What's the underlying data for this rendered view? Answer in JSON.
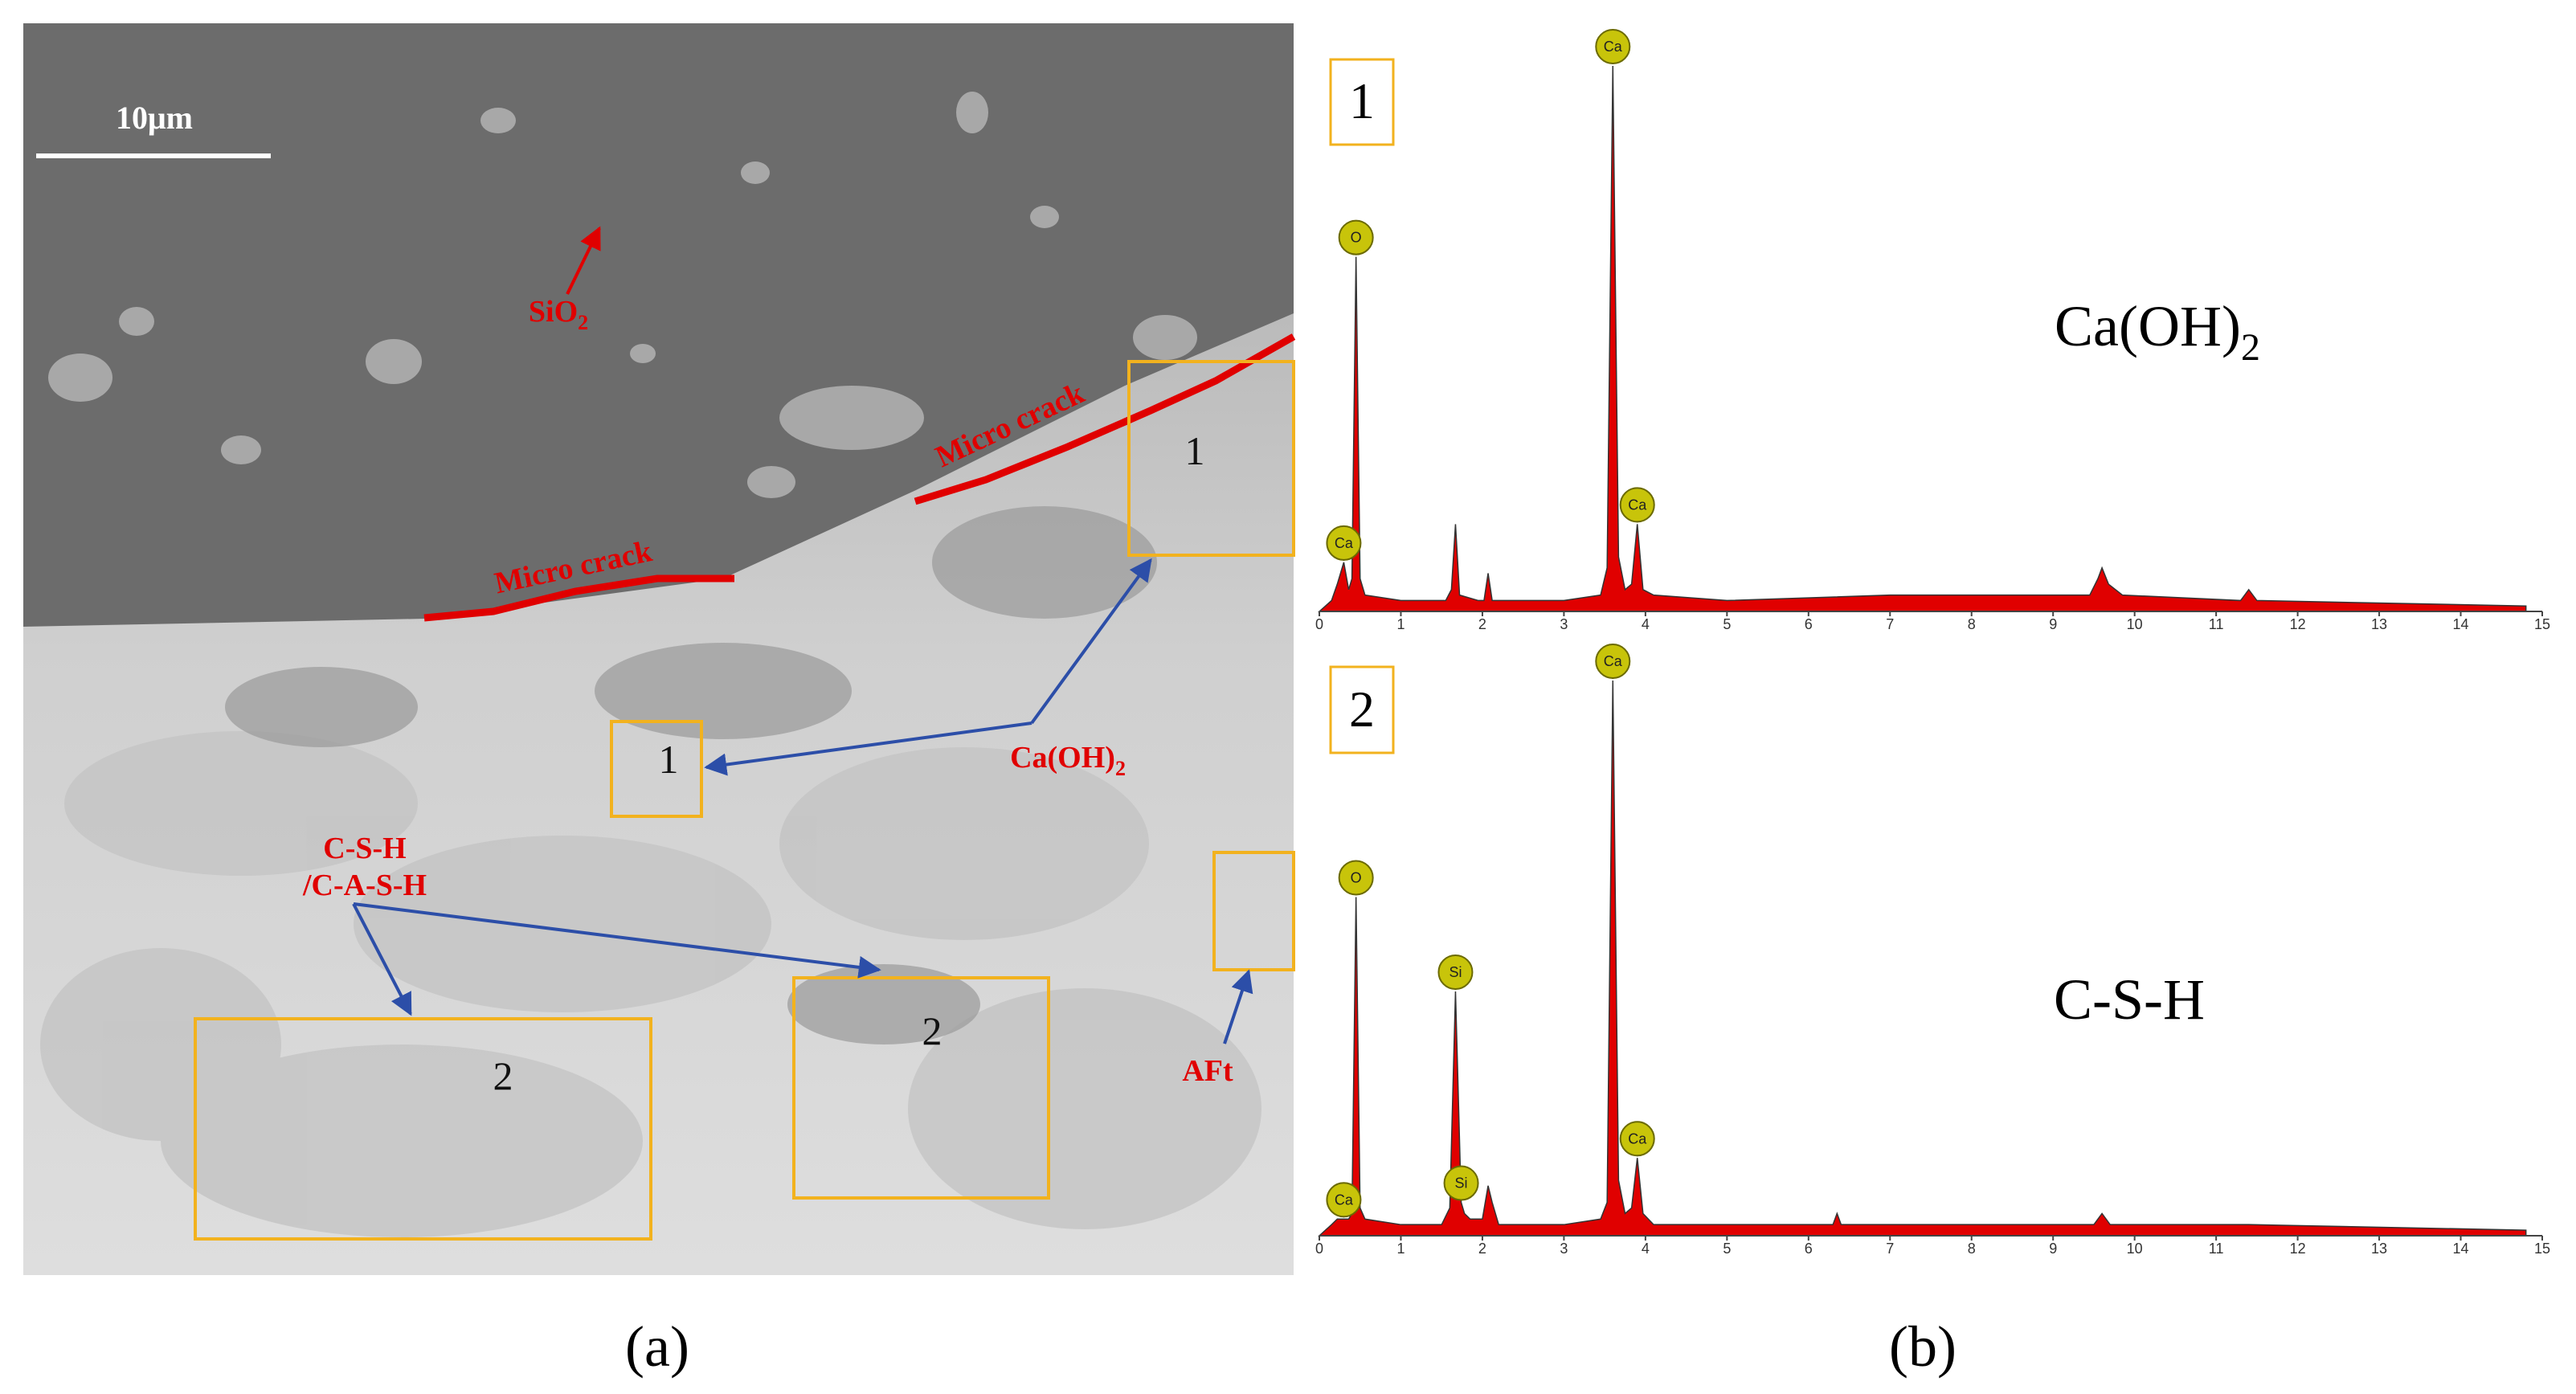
{
  "panel_a": {
    "scale_bar": "10μm",
    "sio2": {
      "text": "SiO",
      "sub": "2"
    },
    "micro_crack": [
      "Micro crack",
      "Micro crack"
    ],
    "caoh2": {
      "text": "Ca(OH)",
      "sub": "2"
    },
    "csh": [
      "C-S-H",
      "/C-A-S-H"
    ],
    "aft": "AFt",
    "box_labels": [
      "1",
      "1",
      "2",
      "2"
    ],
    "caption": "(a)"
  },
  "panel_b": {
    "box_labels": [
      "1",
      "2"
    ],
    "phases": [
      {
        "text": "Ca(OH)",
        "sub": "2"
      },
      {
        "text": "C-S-H"
      }
    ],
    "caption": "(b)"
  },
  "chart_data": [
    {
      "type": "area",
      "color": "#e00000",
      "xlim": [
        0,
        15
      ],
      "xticks": [
        0,
        1,
        2,
        3,
        4,
        5,
        6,
        7,
        8,
        9,
        10,
        11,
        12,
        13,
        14,
        15
      ],
      "x": [
        0,
        0.15,
        0.22,
        0.3,
        0.36,
        0.4,
        0.45,
        0.5,
        0.56,
        1.0,
        1.55,
        1.62,
        1.67,
        1.72,
        1.95,
        2.02,
        2.07,
        2.12,
        3.0,
        3.45,
        3.53,
        3.6,
        3.67,
        3.75,
        3.83,
        3.9,
        3.97,
        4.1,
        5.0,
        7.0,
        9.45,
        9.55,
        9.6,
        9.68,
        9.85,
        11.3,
        11.4,
        11.5,
        14.8
      ],
      "values": [
        0,
        2,
        5,
        9,
        4,
        6,
        65,
        6,
        3,
        2,
        2,
        4,
        16,
        3,
        2,
        2,
        7,
        2,
        2,
        3,
        8,
        100,
        10,
        4,
        5,
        16,
        4,
        3,
        2,
        3,
        3,
        6,
        8,
        5,
        3,
        2,
        4,
        2,
        1
      ],
      "peaks": [
        {
          "label": "Ca",
          "x": 0.3
        },
        {
          "label": "O",
          "x": 0.45
        },
        {
          "label": "Ca",
          "x": 3.6
        },
        {
          "label": "Ca",
          "x": 3.9
        }
      ]
    },
    {
      "type": "area",
      "color": "#e00000",
      "xlim": [
        0,
        15
      ],
      "xticks": [
        0,
        1,
        2,
        3,
        4,
        5,
        6,
        7,
        8,
        9,
        10,
        11,
        12,
        13,
        14,
        15
      ],
      "x": [
        0,
        0.15,
        0.22,
        0.3,
        0.36,
        0.4,
        0.45,
        0.5,
        0.56,
        1.0,
        1.5,
        1.6,
        1.67,
        1.74,
        1.78,
        1.85,
        2.0,
        2.07,
        2.12,
        2.2,
        3.0,
        3.45,
        3.53,
        3.6,
        3.67,
        3.75,
        3.83,
        3.9,
        3.97,
        4.1,
        5.0,
        6.3,
        6.35,
        6.4,
        9.5,
        9.6,
        9.7,
        11.4,
        14.8
      ],
      "values": [
        0,
        2,
        3,
        3,
        3,
        4,
        61,
        5,
        3,
        2,
        2,
        5,
        44,
        6,
        4,
        3,
        3,
        9,
        6,
        2,
        2,
        3,
        6,
        100,
        10,
        4,
        5,
        14,
        4,
        2,
        2,
        2,
        4,
        2,
        2,
        4,
        2,
        2,
        1
      ],
      "peaks": [
        {
          "label": "Ca",
          "x": 0.3
        },
        {
          "label": "O",
          "x": 0.45
        },
        {
          "label": "Si",
          "x": 1.67
        },
        {
          "label": "Si",
          "x": 1.74
        },
        {
          "label": "Ca",
          "x": 3.6
        },
        {
          "label": "Ca",
          "x": 3.9
        }
      ]
    }
  ]
}
